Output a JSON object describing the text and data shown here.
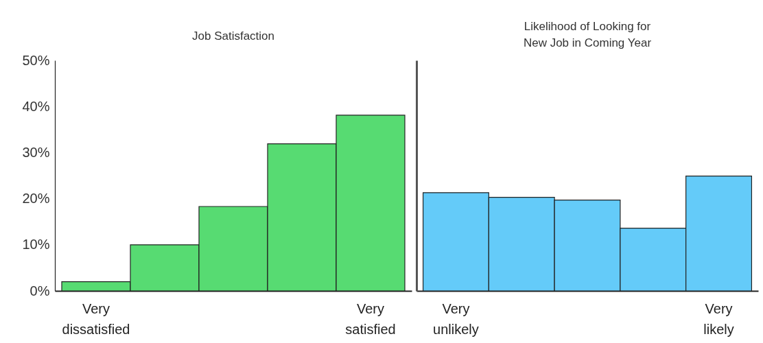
{
  "chart_data": [
    {
      "type": "bar",
      "title": "Job Satisfaction",
      "categories": [
        "Very dissatisfied",
        null,
        null,
        null,
        "Very satisfied"
      ],
      "values": [
        2,
        10,
        18.3,
        31.9,
        38.1
      ],
      "color": "#57db72",
      "ylim": [
        0,
        50
      ],
      "yticks": [
        {
          "value": 0,
          "label": "0%"
        },
        {
          "value": 10,
          "label": "10%"
        },
        {
          "value": 20,
          "label": "20%"
        },
        {
          "value": 30,
          "label": "30%"
        },
        {
          "value": 40,
          "label": "40%"
        },
        {
          "value": 50,
          "label": "50%"
        }
      ],
      "grid": false
    },
    {
      "type": "bar",
      "title": "Likelihood of Looking for New Job in Coming Year",
      "categories": [
        "Very unlikely",
        null,
        null,
        null,
        "Very likely"
      ],
      "values": [
        21.3,
        20.3,
        19.7,
        13.6,
        24.9
      ],
      "color": "#64cbf9",
      "ylim": [
        0,
        50
      ],
      "grid": false,
      "tick_labels": "x"
    }
  ]
}
